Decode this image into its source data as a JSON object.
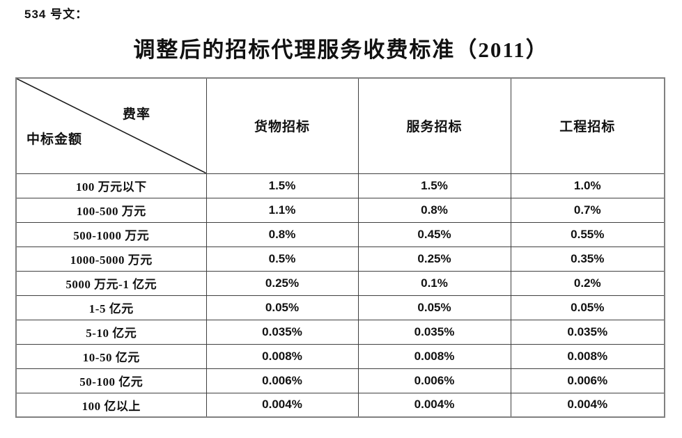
{
  "page": {
    "doc_label": "534 号文：",
    "title": "调整后的招标代理服务收费标准（2011）"
  },
  "table": {
    "corner": {
      "top_right": "费率",
      "bottom_left": "中标金额"
    },
    "columns": [
      "货物招标",
      "服务招标",
      "工程招标"
    ],
    "rows": [
      {
        "amount": "100 万元以下",
        "rates": [
          "1.5%",
          "1.5%",
          "1.0%"
        ]
      },
      {
        "amount": "100-500 万元",
        "rates": [
          "1.1%",
          "0.8%",
          "0.7%"
        ]
      },
      {
        "amount": "500-1000 万元",
        "rates": [
          "0.8%",
          "0.45%",
          "0.55%"
        ]
      },
      {
        "amount": "1000-5000 万元",
        "rates": [
          "0.5%",
          "0.25%",
          "0.35%"
        ]
      },
      {
        "amount": "5000 万元-1 亿元",
        "rates": [
          "0.25%",
          "0.1%",
          "0.2%"
        ]
      },
      {
        "amount": "1-5 亿元",
        "rates": [
          "0.05%",
          "0.05%",
          "0.05%"
        ]
      },
      {
        "amount": "5-10 亿元",
        "rates": [
          "0.035%",
          "0.035%",
          "0.035%"
        ]
      },
      {
        "amount": "10-50 亿元",
        "rates": [
          "0.008%",
          "0.008%",
          "0.008%"
        ]
      },
      {
        "amount": "50-100 亿元",
        "rates": [
          "0.006%",
          "0.006%",
          "0.006%"
        ]
      },
      {
        "amount": "100 亿以上",
        "rates": [
          "0.004%",
          "0.004%",
          "0.004%"
        ]
      }
    ],
    "colors": {
      "outer_border": "#808080",
      "inner_border": "#3f3f3f",
      "diagonal": "#1a1a1a",
      "text": "#111111"
    }
  }
}
